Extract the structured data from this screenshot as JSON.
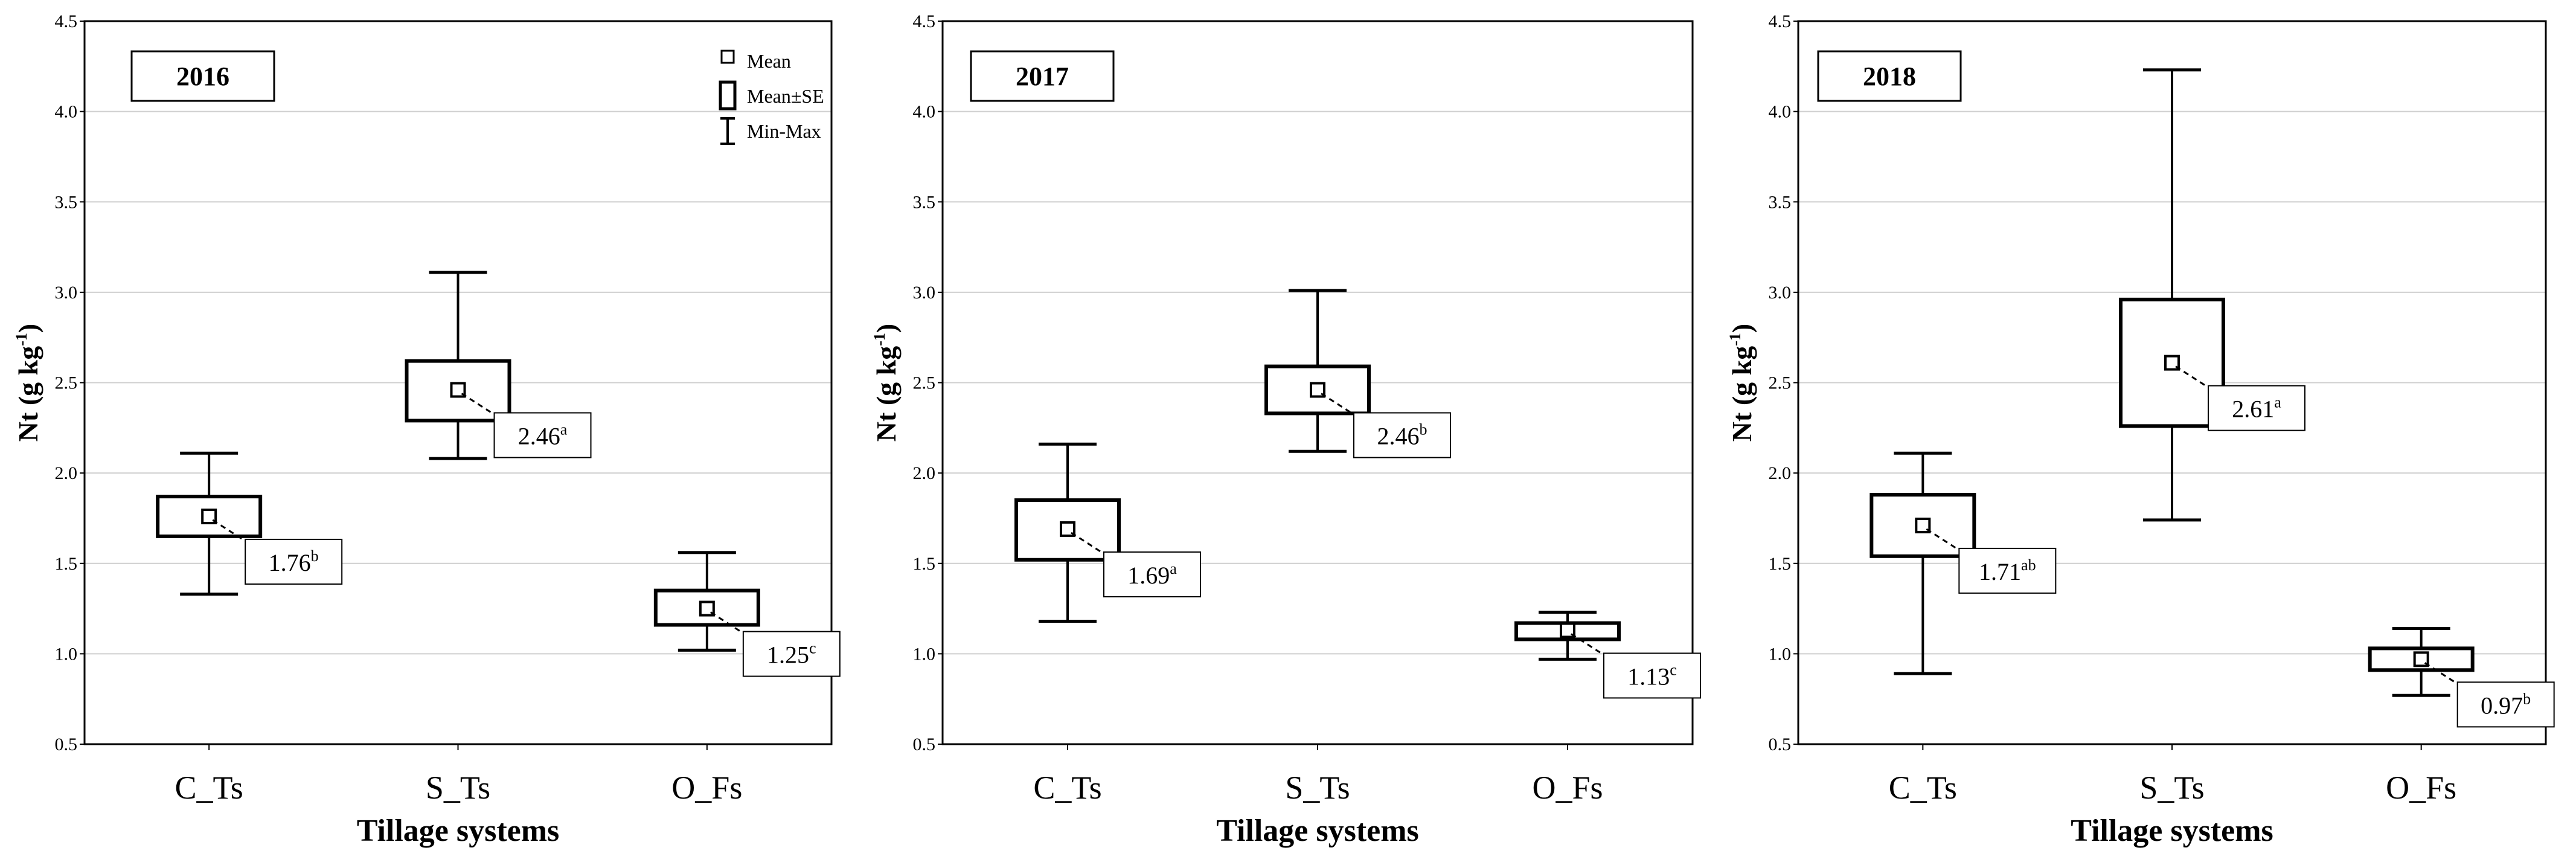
{
  "figure_description_labels": {
    "ylabel_main": "Nt (g kg",
    "ylabel_sup": "-1",
    "ylabel_close": ")",
    "xlabel": "Tillage systems"
  },
  "legend": {
    "mean": "Mean",
    "mean_se": "Mean±SE",
    "min_max": "Min-Max"
  },
  "chart_data": [
    {
      "type": "box",
      "title": "2016",
      "xlabel": "Tillage systems",
      "ylabel": "Nt (g kg-1)",
      "ylim": [
        0.5,
        4.5
      ],
      "yticks": [
        "0.5",
        "1.0",
        "1.5",
        "2.0",
        "2.5",
        "3.0",
        "3.5",
        "4.0",
        "4.5"
      ],
      "categories": [
        "C_Ts",
        "S_Ts",
        "O_Fs"
      ],
      "boxes": [
        {
          "category": "C_Ts",
          "mean": 1.76,
          "se_low": 1.65,
          "se_high": 1.87,
          "min": 1.33,
          "max": 2.11,
          "label": "1.76",
          "letter": "b"
        },
        {
          "category": "S_Ts",
          "mean": 2.46,
          "se_low": 2.29,
          "se_high": 2.62,
          "min": 2.08,
          "max": 3.11,
          "label": "2.46",
          "letter": "a"
        },
        {
          "category": "O_Fs",
          "mean": 1.25,
          "se_low": 1.16,
          "se_high": 1.35,
          "min": 1.02,
          "max": 1.56,
          "label": "1.25",
          "letter": "c"
        }
      ]
    },
    {
      "type": "box",
      "title": "2017",
      "xlabel": "Tillage systems",
      "ylabel": "Nt (g kg-1)",
      "ylim": [
        0.5,
        4.5
      ],
      "yticks": [
        "0.5",
        "1.0",
        "1.5",
        "2.0",
        "2.5",
        "3.0",
        "3.5",
        "4.0",
        "4.5"
      ],
      "categories": [
        "C_Ts",
        "S_Ts",
        "O_Fs"
      ],
      "boxes": [
        {
          "category": "C_Ts",
          "mean": 1.69,
          "se_low": 1.52,
          "se_high": 1.85,
          "min": 1.18,
          "max": 2.16,
          "label": "1.69",
          "letter": "a"
        },
        {
          "category": "S_Ts",
          "mean": 2.46,
          "se_low": 2.33,
          "se_high": 2.59,
          "min": 2.12,
          "max": 3.01,
          "label": "2.46",
          "letter": "b"
        },
        {
          "category": "O_Fs",
          "mean": 1.13,
          "se_low": 1.08,
          "se_high": 1.17,
          "min": 0.97,
          "max": 1.23,
          "label": "1.13",
          "letter": "c"
        }
      ]
    },
    {
      "type": "box",
      "title": "2018",
      "xlabel": "Tillage systems",
      "ylabel": "Nt (g kg-1)",
      "ylim": [
        0.5,
        4.5
      ],
      "yticks": [
        "0.5",
        "1.0",
        "1.5",
        "2.0",
        "2.5",
        "3.0",
        "3.5",
        "4.0",
        "4.5"
      ],
      "categories": [
        "C_Ts",
        "S_Ts",
        "O_Fs"
      ],
      "boxes": [
        {
          "category": "C_Ts",
          "mean": 1.71,
          "se_low": 1.54,
          "se_high": 1.88,
          "min": 0.89,
          "max": 2.11,
          "label": "1.71",
          "letter": "ab"
        },
        {
          "category": "S_Ts",
          "mean": 2.61,
          "se_low": 2.26,
          "se_high": 2.96,
          "min": 1.74,
          "max": 4.23,
          "label": "2.61",
          "letter": "a"
        },
        {
          "category": "O_Fs",
          "mean": 0.97,
          "se_low": 0.91,
          "se_high": 1.03,
          "min": 0.77,
          "max": 1.14,
          "label": "0.97",
          "letter": "b"
        }
      ]
    }
  ]
}
